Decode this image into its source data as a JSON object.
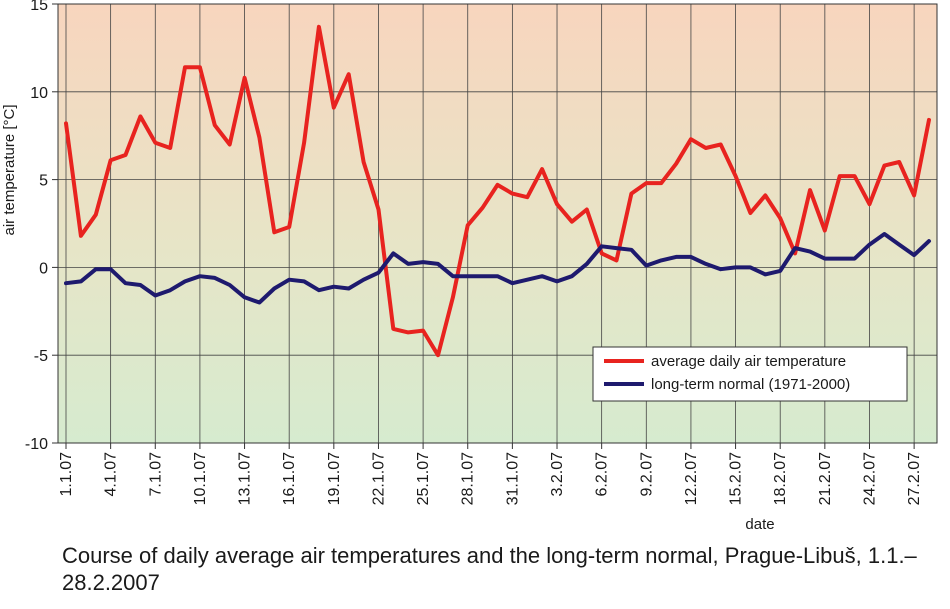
{
  "caption": "Course of daily average air temperatures and the long-term normal, Prague-Libuš, 1.1.–28.2.2007",
  "chart_data": {
    "type": "line",
    "xlabel": "date",
    "ylabel": "air temperature [°C]",
    "ylim": [
      -10,
      15
    ],
    "yticks": [
      -10,
      -5,
      0,
      5,
      10,
      15
    ],
    "grid": true,
    "legend_position": "bottom-right",
    "x": [
      "1.1.07",
      "2.1.07",
      "3.1.07",
      "4.1.07",
      "5.1.07",
      "6.1.07",
      "7.1.07",
      "8.1.07",
      "9.1.07",
      "10.1.07",
      "11.1.07",
      "12.1.07",
      "13.1.07",
      "14.1.07",
      "15.1.07",
      "16.1.07",
      "17.1.07",
      "18.1.07",
      "19.1.07",
      "20.1.07",
      "21.1.07",
      "22.1.07",
      "23.1.07",
      "24.1.07",
      "25.1.07",
      "26.1.07",
      "27.1.07",
      "28.1.07",
      "29.1.07",
      "30.1.07",
      "31.1.07",
      "1.2.07",
      "2.2.07",
      "3.2.07",
      "4.2.07",
      "5.2.07",
      "6.2.07",
      "7.2.07",
      "8.2.07",
      "9.2.07",
      "10.2.07",
      "11.2.07",
      "12.2.07",
      "13.2.07",
      "14.2.07",
      "15.2.07",
      "16.2.07",
      "17.2.07",
      "18.2.07",
      "19.2.07",
      "20.2.07",
      "21.2.07",
      "22.2.07",
      "23.2.07",
      "24.2.07",
      "25.2.07",
      "26.2.07",
      "27.2.07",
      "28.2.07"
    ],
    "xtick_labels": [
      "1.1.07",
      "4.1.07",
      "7.1.07",
      "10.1.07",
      "13.1.07",
      "16.1.07",
      "19.1.07",
      "22.1.07",
      "25.1.07",
      "28.1.07",
      "31.1.07",
      "3.2.07",
      "6.2.07",
      "9.2.07",
      "12.2.07",
      "15.2.07",
      "18.2.07",
      "21.2.07",
      "24.2.07",
      "27.2.07"
    ],
    "series": [
      {
        "name": "average daily air temperature",
        "color": "#e8231f",
        "values": [
          8.2,
          1.8,
          3.0,
          6.1,
          6.4,
          8.6,
          7.1,
          6.8,
          11.4,
          11.4,
          8.1,
          7.0,
          10.8,
          7.4,
          2.0,
          2.3,
          7.1,
          13.7,
          9.1,
          11.0,
          6.0,
          3.3,
          -3.5,
          -3.7,
          -3.6,
          -5.0,
          -1.7,
          2.4,
          3.4,
          4.7,
          4.2,
          4.0,
          5.6,
          3.6,
          2.6,
          3.3,
          0.8,
          0.4,
          4.2,
          4.8,
          4.8,
          5.9,
          7.3,
          6.8,
          7.0,
          5.2,
          3.1,
          4.1,
          2.8,
          0.8,
          4.4,
          2.1,
          5.2,
          5.2,
          3.6,
          5.8,
          6.0,
          4.1,
          8.4
        ]
      },
      {
        "name": "long-term normal (1971-2000)",
        "color": "#1e1a6e",
        "values": [
          -0.9,
          -0.8,
          -0.1,
          -0.1,
          -0.9,
          -1.0,
          -1.6,
          -1.3,
          -0.8,
          -0.5,
          -0.6,
          -1.0,
          -1.7,
          -2.0,
          -1.2,
          -0.7,
          -0.8,
          -1.3,
          -1.1,
          -1.2,
          -0.7,
          -0.3,
          0.8,
          0.2,
          0.3,
          0.2,
          -0.5,
          -0.5,
          -0.5,
          -0.5,
          -0.9,
          -0.7,
          -0.5,
          -0.8,
          -0.5,
          0.2,
          1.2,
          1.1,
          1.0,
          0.1,
          0.4,
          0.6,
          0.6,
          0.2,
          -0.1,
          0.0,
          0.0,
          -0.4,
          -0.2,
          1.1,
          0.9,
          0.5,
          0.5,
          0.5,
          1.3,
          1.9,
          1.3,
          0.7,
          1.5
        ]
      }
    ]
  }
}
